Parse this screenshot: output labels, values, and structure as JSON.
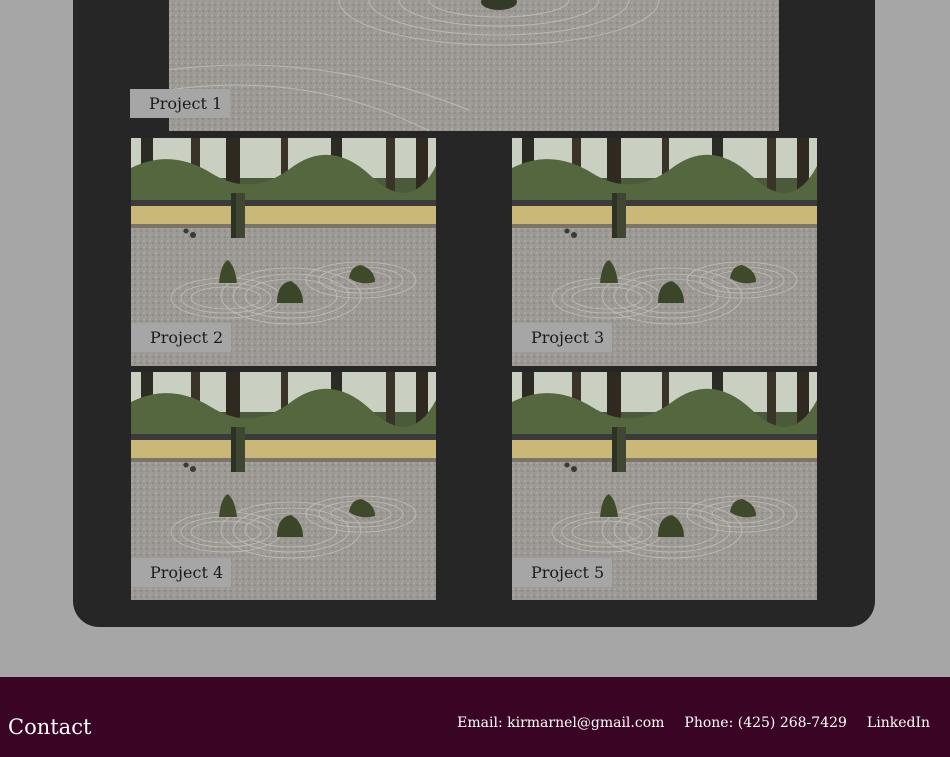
{
  "projects": [
    {
      "label": "Project 1"
    },
    {
      "label": "Project 2"
    },
    {
      "label": "Project 3"
    },
    {
      "label": "Project 4"
    },
    {
      "label": "Project 5"
    }
  ],
  "footer": {
    "title": "Contact",
    "email": "Email: kirmarnel@gmail.com",
    "phone": "Phone: (425) 268-7429",
    "linkedin": "LinkedIn"
  },
  "colors": {
    "page_background": "#a6a6a6",
    "panel_background": "#262626",
    "footer_background": "#3a0524",
    "label_background": "#a6a6a6"
  }
}
